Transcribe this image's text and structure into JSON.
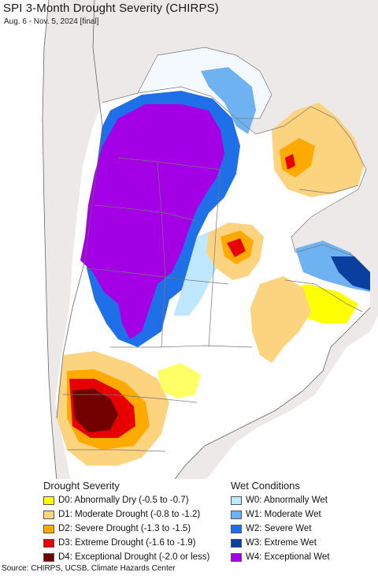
{
  "header": {
    "title": "SPI 3-Month Drought Severity (CHIRPS)",
    "subtitle": "Aug. 6 - Nov. 5, 2024 [final]"
  },
  "legend": {
    "drought_title": "Drought Severity",
    "wet_title": "Wet Conditions",
    "drought_items": [
      {
        "label": "D0: Abnormally Dry (-0.5 to -0.7)",
        "color": "#ffff00"
      },
      {
        "label": "D1: Moderate Drought (-0.8 to -1.2)",
        "color": "#fcd37f"
      },
      {
        "label": "D2: Severe Drought (-1.3 to -1.5)",
        "color": "#ffaa00"
      },
      {
        "label": "D3: Extreme Drought (-1.6 to -1.9)",
        "color": "#e60000"
      },
      {
        "label": "D4: Exceptional Drought (-2.0 or less)",
        "color": "#730000"
      }
    ],
    "wet_items": [
      {
        "label": "W0: Abnormally Wet",
        "color": "#bfe8ff"
      },
      {
        "label": "W1: Moderate Wet",
        "color": "#6fb2f2"
      },
      {
        "label": "W2: Severe Wet",
        "color": "#1f6fe8"
      },
      {
        "label": "W3: Extreme Wet",
        "color": "#0a3fa0"
      },
      {
        "label": "W4: Exceptional Wet",
        "color": "#a300e6"
      }
    ]
  },
  "map": {
    "colors": {
      "outside": "#ede9e9",
      "land": "#ffffff",
      "ocean": "#ffffff",
      "border": "#777777"
    }
  },
  "footer": {
    "source": "Source: CHIRPS, UCSB, Climate Hazards Center"
  }
}
